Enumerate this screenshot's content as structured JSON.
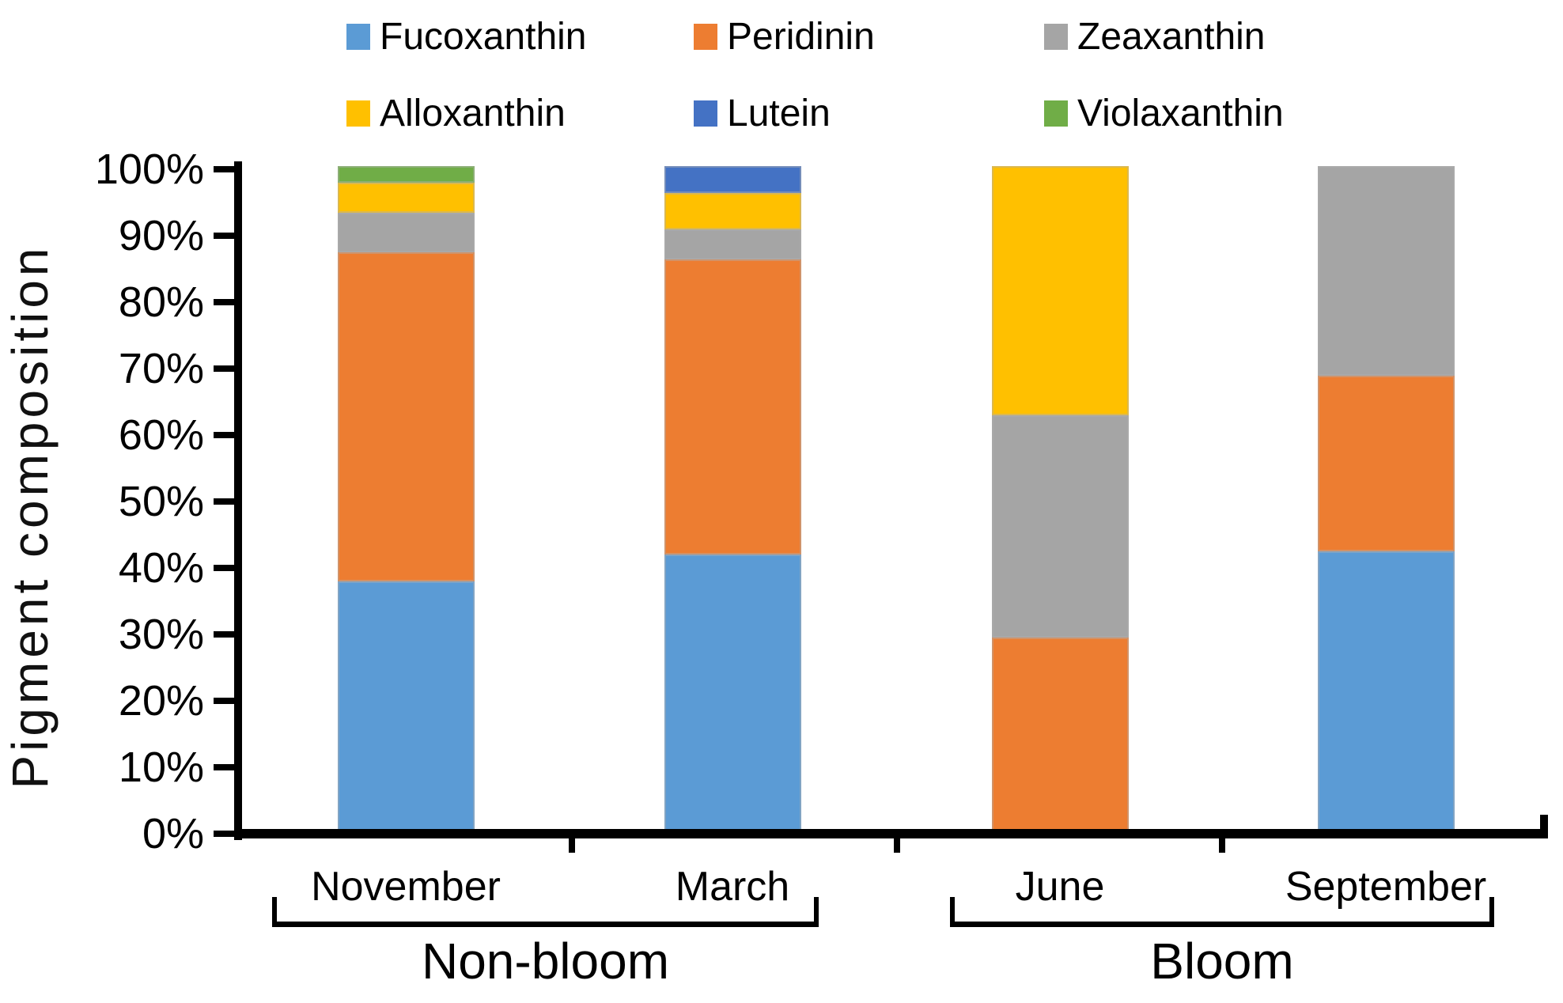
{
  "chart_data": {
    "type": "bar",
    "stacked": true,
    "percent_stacked": true,
    "title": "",
    "xlabel": "",
    "ylabel": "Pigment composition",
    "ylim": [
      0,
      100
    ],
    "grid": false,
    "legend_position": "top",
    "y_tick_labels": [
      "0%",
      "10%",
      "20%",
      "30%",
      "40%",
      "50%",
      "60%",
      "70%",
      "80%",
      "90%",
      "100%"
    ],
    "categories": [
      "November",
      "March",
      "June",
      "September"
    ],
    "category_groups": [
      {
        "label": "Non-bloom",
        "categories": [
          "November",
          "March"
        ]
      },
      {
        "label": "Bloom",
        "categories": [
          "June",
          "September"
        ]
      }
    ],
    "series": [
      {
        "name": "Fucoxanthin",
        "color": "#5B9BD5",
        "values": [
          37.5,
          41.5,
          0,
          42
        ]
      },
      {
        "name": "Peridinin",
        "color": "#ED7D31",
        "values": [
          49.5,
          44.5,
          29,
          26.5
        ]
      },
      {
        "name": "Zeaxanthin",
        "color": "#A5A5A5",
        "values": [
          6,
          4.5,
          33.5,
          31.5
        ]
      },
      {
        "name": "Alloxanthin",
        "color": "#FFC000",
        "values": [
          4.5,
          5.5,
          37.5,
          0
        ]
      },
      {
        "name": "Lutein",
        "color": "#4472C4",
        "values": [
          0,
          4,
          0,
          0
        ]
      },
      {
        "name": "Violaxanthin",
        "color": "#70AD47",
        "values": [
          2.5,
          0,
          0,
          0
        ]
      }
    ]
  }
}
